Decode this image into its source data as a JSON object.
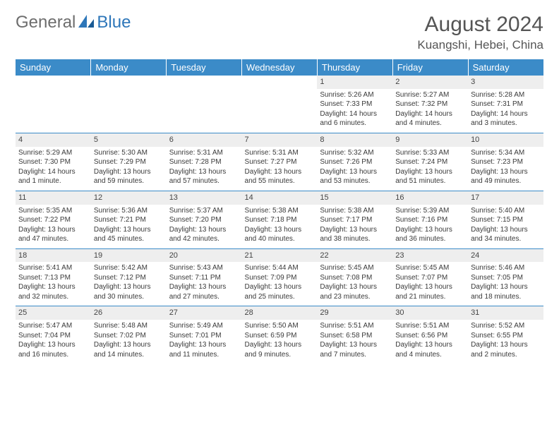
{
  "brand": {
    "part1": "General",
    "part2": "Blue"
  },
  "title": "August 2024",
  "location": "Kuangshi, Hebei, China",
  "colors": {
    "header_bg": "#3b8bc8",
    "header_text": "#ffffff",
    "daynum_bg": "#eeeeee",
    "row_divider": "#3b8bc8",
    "logo_gray": "#6d6d6d",
    "logo_blue": "#2d76b9",
    "body_text": "#3a3a3a",
    "title_text": "#555555",
    "background": "#ffffff"
  },
  "typography": {
    "title_fontsize": 30,
    "location_fontsize": 17,
    "weekday_fontsize": 13,
    "daynum_fontsize": 11,
    "cell_fontsize": 10,
    "font_family": "Arial"
  },
  "layout": {
    "columns": 7,
    "rows": 5,
    "aspect": "792x612"
  },
  "weekdays": [
    "Sunday",
    "Monday",
    "Tuesday",
    "Wednesday",
    "Thursday",
    "Friday",
    "Saturday"
  ],
  "weeks": [
    [
      {
        "day": "",
        "sunrise": "",
        "sunset": "",
        "daylight": ""
      },
      {
        "day": "",
        "sunrise": "",
        "sunset": "",
        "daylight": ""
      },
      {
        "day": "",
        "sunrise": "",
        "sunset": "",
        "daylight": ""
      },
      {
        "day": "",
        "sunrise": "",
        "sunset": "",
        "daylight": ""
      },
      {
        "day": "1",
        "sunrise": "Sunrise: 5:26 AM",
        "sunset": "Sunset: 7:33 PM",
        "daylight": "Daylight: 14 hours and 6 minutes."
      },
      {
        "day": "2",
        "sunrise": "Sunrise: 5:27 AM",
        "sunset": "Sunset: 7:32 PM",
        "daylight": "Daylight: 14 hours and 4 minutes."
      },
      {
        "day": "3",
        "sunrise": "Sunrise: 5:28 AM",
        "sunset": "Sunset: 7:31 PM",
        "daylight": "Daylight: 14 hours and 3 minutes."
      }
    ],
    [
      {
        "day": "4",
        "sunrise": "Sunrise: 5:29 AM",
        "sunset": "Sunset: 7:30 PM",
        "daylight": "Daylight: 14 hours and 1 minute."
      },
      {
        "day": "5",
        "sunrise": "Sunrise: 5:30 AM",
        "sunset": "Sunset: 7:29 PM",
        "daylight": "Daylight: 13 hours and 59 minutes."
      },
      {
        "day": "6",
        "sunrise": "Sunrise: 5:31 AM",
        "sunset": "Sunset: 7:28 PM",
        "daylight": "Daylight: 13 hours and 57 minutes."
      },
      {
        "day": "7",
        "sunrise": "Sunrise: 5:31 AM",
        "sunset": "Sunset: 7:27 PM",
        "daylight": "Daylight: 13 hours and 55 minutes."
      },
      {
        "day": "8",
        "sunrise": "Sunrise: 5:32 AM",
        "sunset": "Sunset: 7:26 PM",
        "daylight": "Daylight: 13 hours and 53 minutes."
      },
      {
        "day": "9",
        "sunrise": "Sunrise: 5:33 AM",
        "sunset": "Sunset: 7:24 PM",
        "daylight": "Daylight: 13 hours and 51 minutes."
      },
      {
        "day": "10",
        "sunrise": "Sunrise: 5:34 AM",
        "sunset": "Sunset: 7:23 PM",
        "daylight": "Daylight: 13 hours and 49 minutes."
      }
    ],
    [
      {
        "day": "11",
        "sunrise": "Sunrise: 5:35 AM",
        "sunset": "Sunset: 7:22 PM",
        "daylight": "Daylight: 13 hours and 47 minutes."
      },
      {
        "day": "12",
        "sunrise": "Sunrise: 5:36 AM",
        "sunset": "Sunset: 7:21 PM",
        "daylight": "Daylight: 13 hours and 45 minutes."
      },
      {
        "day": "13",
        "sunrise": "Sunrise: 5:37 AM",
        "sunset": "Sunset: 7:20 PM",
        "daylight": "Daylight: 13 hours and 42 minutes."
      },
      {
        "day": "14",
        "sunrise": "Sunrise: 5:38 AM",
        "sunset": "Sunset: 7:18 PM",
        "daylight": "Daylight: 13 hours and 40 minutes."
      },
      {
        "day": "15",
        "sunrise": "Sunrise: 5:38 AM",
        "sunset": "Sunset: 7:17 PM",
        "daylight": "Daylight: 13 hours and 38 minutes."
      },
      {
        "day": "16",
        "sunrise": "Sunrise: 5:39 AM",
        "sunset": "Sunset: 7:16 PM",
        "daylight": "Daylight: 13 hours and 36 minutes."
      },
      {
        "day": "17",
        "sunrise": "Sunrise: 5:40 AM",
        "sunset": "Sunset: 7:15 PM",
        "daylight": "Daylight: 13 hours and 34 minutes."
      }
    ],
    [
      {
        "day": "18",
        "sunrise": "Sunrise: 5:41 AM",
        "sunset": "Sunset: 7:13 PM",
        "daylight": "Daylight: 13 hours and 32 minutes."
      },
      {
        "day": "19",
        "sunrise": "Sunrise: 5:42 AM",
        "sunset": "Sunset: 7:12 PM",
        "daylight": "Daylight: 13 hours and 30 minutes."
      },
      {
        "day": "20",
        "sunrise": "Sunrise: 5:43 AM",
        "sunset": "Sunset: 7:11 PM",
        "daylight": "Daylight: 13 hours and 27 minutes."
      },
      {
        "day": "21",
        "sunrise": "Sunrise: 5:44 AM",
        "sunset": "Sunset: 7:09 PM",
        "daylight": "Daylight: 13 hours and 25 minutes."
      },
      {
        "day": "22",
        "sunrise": "Sunrise: 5:45 AM",
        "sunset": "Sunset: 7:08 PM",
        "daylight": "Daylight: 13 hours and 23 minutes."
      },
      {
        "day": "23",
        "sunrise": "Sunrise: 5:45 AM",
        "sunset": "Sunset: 7:07 PM",
        "daylight": "Daylight: 13 hours and 21 minutes."
      },
      {
        "day": "24",
        "sunrise": "Sunrise: 5:46 AM",
        "sunset": "Sunset: 7:05 PM",
        "daylight": "Daylight: 13 hours and 18 minutes."
      }
    ],
    [
      {
        "day": "25",
        "sunrise": "Sunrise: 5:47 AM",
        "sunset": "Sunset: 7:04 PM",
        "daylight": "Daylight: 13 hours and 16 minutes."
      },
      {
        "day": "26",
        "sunrise": "Sunrise: 5:48 AM",
        "sunset": "Sunset: 7:02 PM",
        "daylight": "Daylight: 13 hours and 14 minutes."
      },
      {
        "day": "27",
        "sunrise": "Sunrise: 5:49 AM",
        "sunset": "Sunset: 7:01 PM",
        "daylight": "Daylight: 13 hours and 11 minutes."
      },
      {
        "day": "28",
        "sunrise": "Sunrise: 5:50 AM",
        "sunset": "Sunset: 6:59 PM",
        "daylight": "Daylight: 13 hours and 9 minutes."
      },
      {
        "day": "29",
        "sunrise": "Sunrise: 5:51 AM",
        "sunset": "Sunset: 6:58 PM",
        "daylight": "Daylight: 13 hours and 7 minutes."
      },
      {
        "day": "30",
        "sunrise": "Sunrise: 5:51 AM",
        "sunset": "Sunset: 6:56 PM",
        "daylight": "Daylight: 13 hours and 4 minutes."
      },
      {
        "day": "31",
        "sunrise": "Sunrise: 5:52 AM",
        "sunset": "Sunset: 6:55 PM",
        "daylight": "Daylight: 13 hours and 2 minutes."
      }
    ]
  ]
}
